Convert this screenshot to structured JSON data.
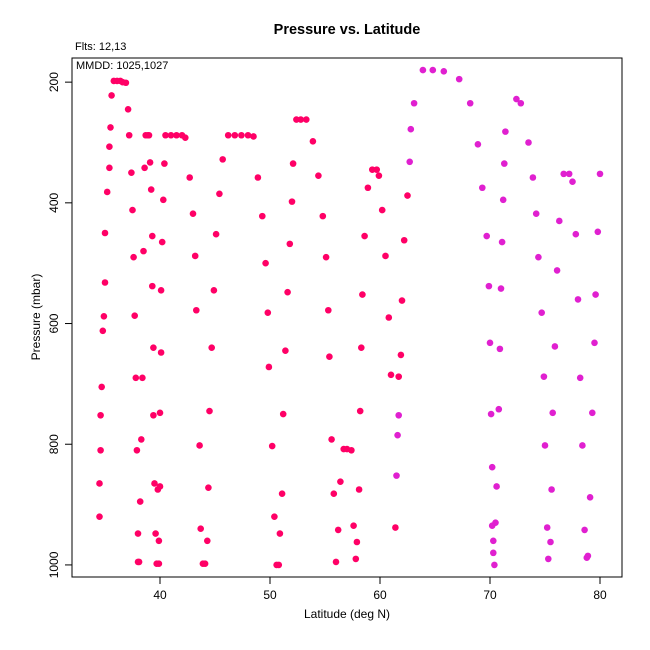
{
  "chart_data": {
    "type": "scatter",
    "title": "Pressure vs. Latitude",
    "xlabel": "Latitude (deg N)",
    "ylabel": "Pressure (mbar)",
    "xlim": [
      32,
      82
    ],
    "ylim": [
      1020,
      160
    ],
    "y_reversed": true,
    "grid": false,
    "x_ticks": [
      40,
      50,
      60,
      70,
      80
    ],
    "y_ticks": [
      200,
      400,
      600,
      800,
      1000
    ],
    "annotations": [
      "Flts: 12,13",
      "MMDD: 1025,1027"
    ],
    "colors": {
      "flight_12": "#ff0066",
      "flight_13": "#e020d0"
    },
    "series": [
      {
        "key": "flight_12",
        "points": [
          [
            34.5,
            920
          ],
          [
            34.5,
            865
          ],
          [
            34.6,
            810
          ],
          [
            34.6,
            752
          ],
          [
            34.7,
            705
          ],
          [
            34.8,
            612
          ],
          [
            34.9,
            588
          ],
          [
            35.0,
            532
          ],
          [
            35.0,
            450
          ],
          [
            35.2,
            382
          ],
          [
            35.4,
            342
          ],
          [
            35.4,
            307
          ],
          [
            35.5,
            275
          ],
          [
            35.6,
            222
          ],
          [
            35.8,
            198
          ],
          [
            36.1,
            198
          ],
          [
            36.4,
            198
          ],
          [
            36.6,
            200
          ],
          [
            36.9,
            201
          ],
          [
            37.1,
            245
          ],
          [
            37.2,
            288
          ],
          [
            37.4,
            350
          ],
          [
            37.5,
            412
          ],
          [
            37.6,
            490
          ],
          [
            37.7,
            587
          ],
          [
            37.8,
            690
          ],
          [
            37.9,
            810
          ],
          [
            38.0,
            948
          ],
          [
            38.0,
            995
          ],
          [
            38.1,
            995
          ],
          [
            38.2,
            895
          ],
          [
            38.3,
            792
          ],
          [
            38.4,
            690
          ],
          [
            38.5,
            480
          ],
          [
            38.6,
            342
          ],
          [
            38.7,
            288
          ],
          [
            38.9,
            288
          ],
          [
            39.0,
            288
          ],
          [
            39.1,
            333
          ],
          [
            39.2,
            378
          ],
          [
            39.3,
            455
          ],
          [
            39.3,
            538
          ],
          [
            39.4,
            640
          ],
          [
            39.4,
            752
          ],
          [
            39.5,
            865
          ],
          [
            39.6,
            948
          ],
          [
            39.7,
            998
          ],
          [
            39.8,
            875
          ],
          [
            39.9,
            998
          ],
          [
            39.9,
            960
          ],
          [
            40.0,
            870
          ],
          [
            40.0,
            748
          ],
          [
            40.1,
            648
          ],
          [
            40.1,
            545
          ],
          [
            40.2,
            465
          ],
          [
            40.3,
            395
          ],
          [
            40.4,
            335
          ],
          [
            40.5,
            288
          ],
          [
            41.0,
            288
          ],
          [
            41.5,
            288
          ],
          [
            42.0,
            288
          ],
          [
            42.3,
            292
          ],
          [
            42.7,
            358
          ],
          [
            43.0,
            418
          ],
          [
            43.2,
            488
          ],
          [
            43.3,
            578
          ],
          [
            43.6,
            802
          ],
          [
            43.7,
            940
          ],
          [
            43.9,
            998
          ],
          [
            44.1,
            998
          ],
          [
            44.3,
            960
          ],
          [
            44.4,
            872
          ],
          [
            44.5,
            745
          ],
          [
            44.7,
            640
          ],
          [
            44.9,
            545
          ],
          [
            45.1,
            452
          ],
          [
            45.4,
            385
          ],
          [
            45.7,
            328
          ],
          [
            46.2,
            288
          ],
          [
            46.8,
            288
          ],
          [
            47.4,
            288
          ],
          [
            48.0,
            288
          ],
          [
            48.5,
            290
          ],
          [
            48.9,
            358
          ],
          [
            49.3,
            422
          ],
          [
            49.6,
            500
          ],
          [
            49.8,
            582
          ],
          [
            49.9,
            672
          ],
          [
            50.2,
            803
          ],
          [
            50.4,
            920
          ],
          [
            50.6,
            1000
          ],
          [
            50.8,
            1000
          ],
          [
            50.9,
            948
          ],
          [
            51.1,
            882
          ],
          [
            51.2,
            750
          ],
          [
            51.4,
            645
          ],
          [
            51.6,
            548
          ],
          [
            51.8,
            468
          ],
          [
            52.0,
            398
          ],
          [
            52.1,
            335
          ],
          [
            52.4,
            262
          ],
          [
            52.8,
            262
          ],
          [
            53.3,
            262
          ],
          [
            53.9,
            298
          ],
          [
            54.4,
            355
          ],
          [
            54.8,
            422
          ],
          [
            55.1,
            490
          ],
          [
            55.3,
            578
          ],
          [
            55.4,
            655
          ],
          [
            55.6,
            792
          ],
          [
            55.8,
            882
          ],
          [
            56.0,
            995
          ],
          [
            56.2,
            942
          ],
          [
            56.4,
            862
          ],
          [
            56.7,
            808
          ],
          [
            57.0,
            808
          ],
          [
            57.4,
            810
          ],
          [
            57.6,
            935
          ],
          [
            57.8,
            990
          ],
          [
            57.9,
            962
          ],
          [
            58.1,
            875
          ],
          [
            58.2,
            745
          ],
          [
            58.3,
            640
          ],
          [
            58.4,
            552
          ],
          [
            58.6,
            455
          ],
          [
            58.9,
            375
          ],
          [
            59.3,
            345
          ],
          [
            59.7,
            345
          ],
          [
            59.9,
            355
          ],
          [
            60.2,
            412
          ],
          [
            60.5,
            488
          ],
          [
            60.8,
            590
          ],
          [
            61.0,
            685
          ],
          [
            61.4,
            938
          ],
          [
            61.7,
            688
          ],
          [
            61.9,
            652
          ],
          [
            62.0,
            562
          ],
          [
            62.2,
            462
          ],
          [
            62.5,
            388
          ]
        ]
      },
      {
        "key": "flight_13",
        "points": [
          [
            61.5,
            852
          ],
          [
            61.6,
            785
          ],
          [
            61.7,
            752
          ],
          [
            62.7,
            332
          ],
          [
            62.8,
            278
          ],
          [
            63.1,
            235
          ],
          [
            63.9,
            180
          ],
          [
            64.8,
            180
          ],
          [
            65.8,
            182
          ],
          [
            67.2,
            195
          ],
          [
            68.2,
            235
          ],
          [
            68.9,
            303
          ],
          [
            69.3,
            375
          ],
          [
            69.7,
            455
          ],
          [
            69.9,
            538
          ],
          [
            70.0,
            632
          ],
          [
            70.1,
            750
          ],
          [
            70.2,
            838
          ],
          [
            70.2,
            935
          ],
          [
            70.3,
            960
          ],
          [
            70.3,
            980
          ],
          [
            70.4,
            1000
          ],
          [
            70.5,
            930
          ],
          [
            70.6,
            870
          ],
          [
            70.8,
            742
          ],
          [
            70.9,
            642
          ],
          [
            71.0,
            542
          ],
          [
            71.1,
            465
          ],
          [
            71.2,
            395
          ],
          [
            71.3,
            335
          ],
          [
            71.4,
            282
          ],
          [
            72.4,
            228
          ],
          [
            72.8,
            235
          ],
          [
            73.5,
            300
          ],
          [
            73.9,
            358
          ],
          [
            74.2,
            418
          ],
          [
            74.4,
            490
          ],
          [
            74.7,
            582
          ],
          [
            74.9,
            688
          ],
          [
            75.0,
            802
          ],
          [
            75.2,
            938
          ],
          [
            75.3,
            990
          ],
          [
            75.5,
            962
          ],
          [
            75.6,
            875
          ],
          [
            75.7,
            748
          ],
          [
            75.9,
            638
          ],
          [
            76.1,
            512
          ],
          [
            76.3,
            430
          ],
          [
            76.7,
            352
          ],
          [
            77.2,
            352
          ],
          [
            77.5,
            365
          ],
          [
            77.8,
            452
          ],
          [
            78.0,
            560
          ],
          [
            78.2,
            690
          ],
          [
            78.4,
            802
          ],
          [
            78.6,
            942
          ],
          [
            78.8,
            988
          ],
          [
            78.9,
            985
          ],
          [
            79.1,
            888
          ],
          [
            79.3,
            748
          ],
          [
            79.5,
            632
          ],
          [
            79.6,
            552
          ],
          [
            79.8,
            448
          ],
          [
            80.0,
            352
          ]
        ]
      }
    ]
  }
}
